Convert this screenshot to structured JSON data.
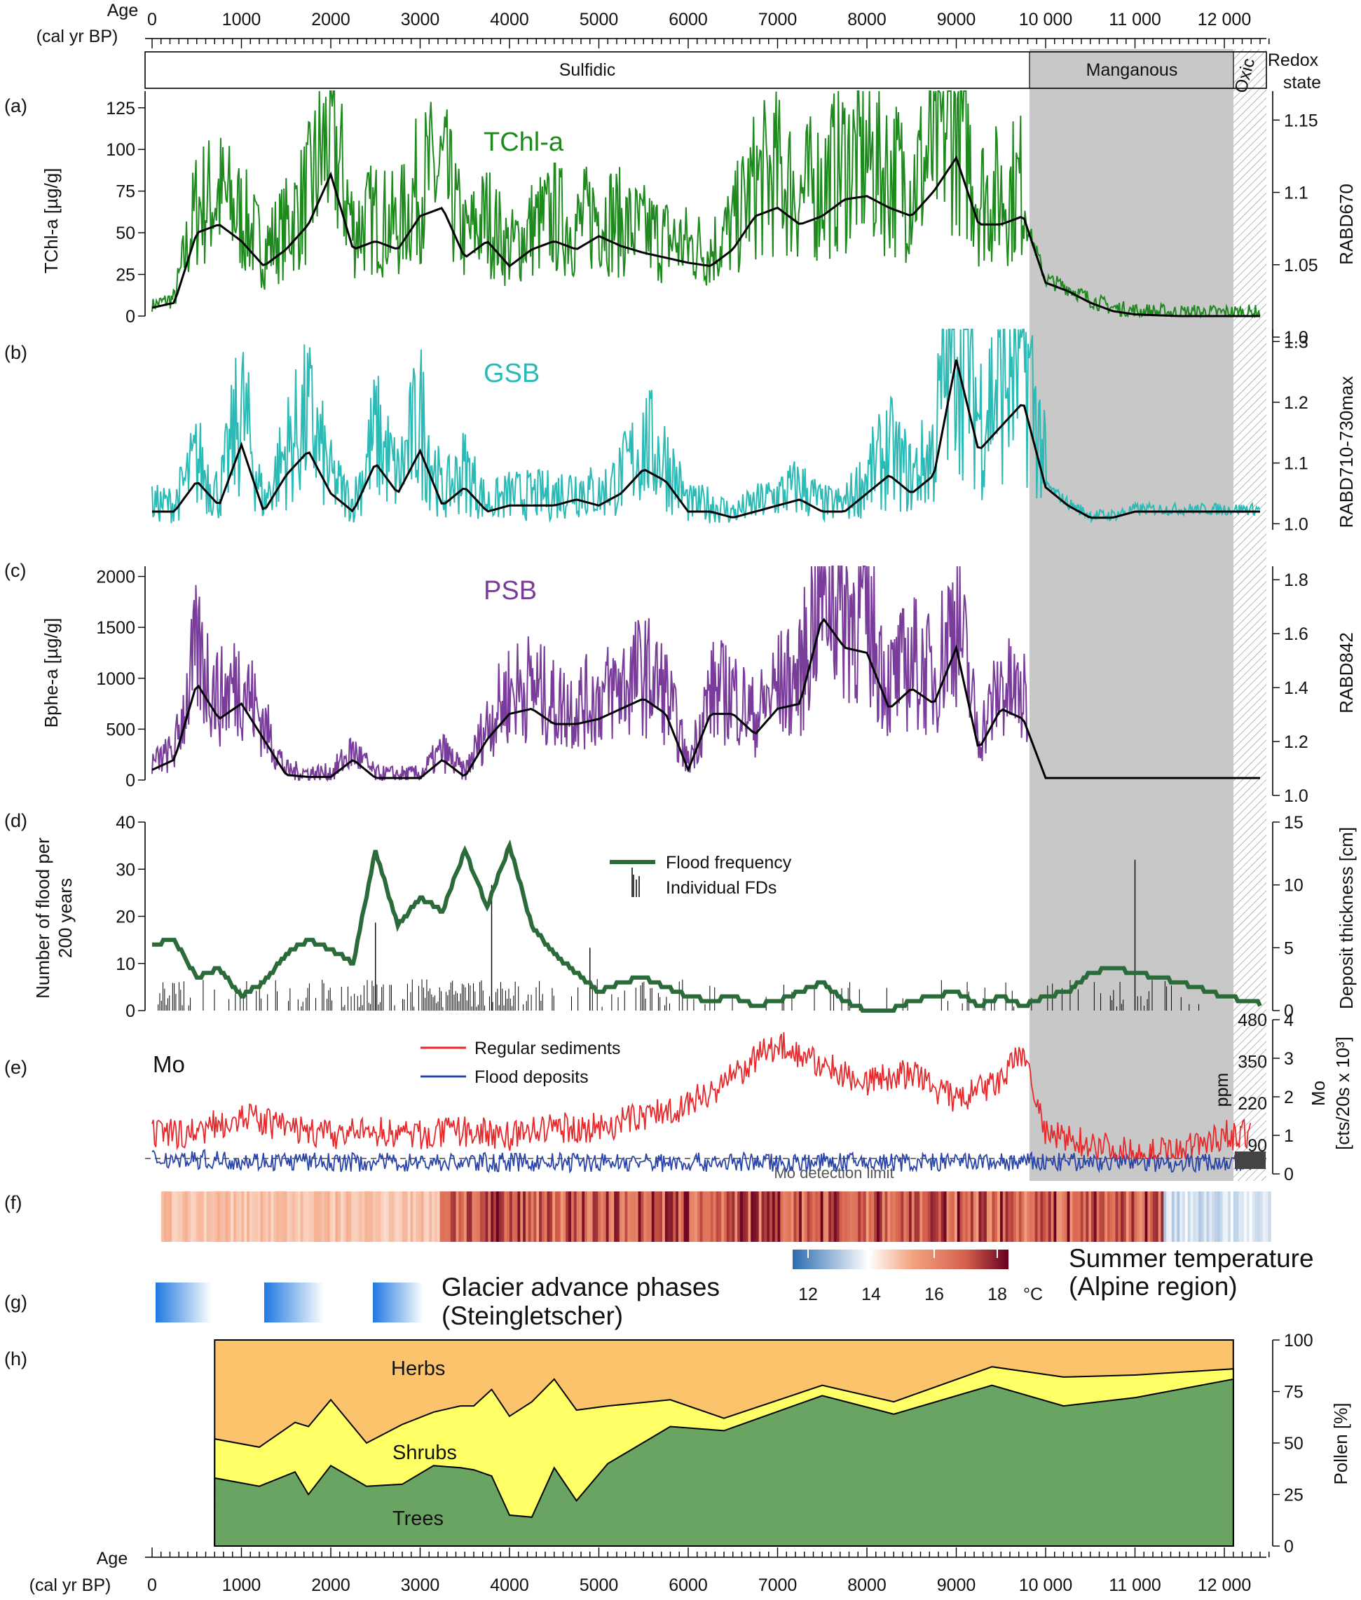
{
  "colors": {
    "tchl": "#1e8a1e",
    "gsb": "#2bbab5",
    "psb": "#7a3c9a",
    "smooth": "#000000",
    "flood": "#2b6b3a",
    "regular": "#e8282b",
    "floodDeposit": "#2a44a8",
    "manganousShade": "#c8c8c8",
    "herbs": "#fbc46c",
    "shrubs": "#ffff66",
    "trees": "#6aa462"
  },
  "axes": {
    "age_title_line1": "Age",
    "age_title_line2": "(cal yr BP)",
    "ticks": [
      "0",
      "1000",
      "2000",
      "3000",
      "4000",
      "5000",
      "6000",
      "7000",
      "8000",
      "9000",
      "10 000",
      "11 000",
      "12 000"
    ],
    "ticks_bottom": [
      "0",
      "1000",
      "2000",
      "3000",
      "4000",
      "5000",
      "6000",
      "7000",
      "8000",
      "9000",
      "10 000",
      "11 000",
      "12 000"
    ]
  },
  "redox": {
    "label_line1": "Redox",
    "label_line2": "state",
    "sulfidic": "Sulfidic",
    "manganous": "Manganous",
    "oxic": "Oxic"
  },
  "panel_labels": {
    "a": "(a)",
    "b": "(b)",
    "c": "(c)",
    "d": "(d)",
    "e": "(e)",
    "f": "(f)",
    "g": "(g)",
    "h": "(h)"
  },
  "panel_a": {
    "title": "TChl-a",
    "ylabel": "TChl-a [µg/g]",
    "y2label": "RABD670",
    "yticks": [
      "0",
      "25",
      "50",
      "75",
      "100",
      "125"
    ],
    "y2ticks": [
      "1.0",
      "1.05",
      "1.1",
      "1.15"
    ]
  },
  "panel_b": {
    "title": "GSB",
    "y2label": "RABD710-730max",
    "y2ticks": [
      "1.0",
      "1.1",
      "1.2",
      "1.3"
    ]
  },
  "panel_c": {
    "title": "PSB",
    "ylabel": "Bphe-a [µg/g]",
    "y2label": "RABD842",
    "yticks": [
      "0",
      "500",
      "1000",
      "1500",
      "2000"
    ],
    "y2ticks": [
      "1.0",
      "1.2",
      "1.4",
      "1.6",
      "1.8"
    ]
  },
  "panel_d": {
    "ylabel_line1": "Number of flood per",
    "ylabel_line2": "200 years",
    "y2label": "Deposit thickness [cm]",
    "yticks": [
      "0",
      "10",
      "20",
      "30",
      "40"
    ],
    "y2ticks": [
      "0",
      "5",
      "10",
      "15"
    ],
    "legend_flood": "Flood frequency",
    "legend_fd": "Individual FDs"
  },
  "panel_e": {
    "title": "Mo",
    "legend_regular": "Regular sediments",
    "legend_flood": "Flood deposits",
    "detection": "Mo detection limit",
    "ppm_label": "ppm",
    "ppm_ticks": [
      "90",
      "220",
      "350",
      "480"
    ],
    "y2label_line1": "Mo",
    "y2label_line2": "[cts/20s x 10³]",
    "y2ticks": [
      "0",
      "1",
      "2",
      "3",
      "4"
    ]
  },
  "panel_f": {
    "legend_title_line1": "Summer temperature",
    "legend_title_line2": "(Alpine region)",
    "colorbar_ticks": [
      "12",
      "14",
      "16",
      "18"
    ],
    "colorbar_unit": "°C"
  },
  "panel_g": {
    "label_line1": "Glacier advance phases",
    "label_line2": "(Steingletscher)"
  },
  "panel_h": {
    "ylabel": "Pollen [%]",
    "yticks": [
      "0",
      "25",
      "50",
      "75",
      "100"
    ],
    "herbs": "Herbs",
    "shrubs": "Shrubs",
    "trees": "Trees"
  },
  "chart_data": [
    {
      "type": "line",
      "title": "TChl-a",
      "xlabel": "Age (cal yr BP)",
      "ylabel": "TChl-a [µg/g]",
      "y2label": "RABD670",
      "xlim": [
        0,
        12500
      ],
      "ylim": [
        0,
        135
      ],
      "y2lim": [
        1.0,
        1.17
      ],
      "series": [
        {
          "x": [
            0,
            250,
            500,
            750,
            1000,
            1250,
            1500,
            1750,
            2000,
            2250,
            2500,
            2750,
            3000,
            3250,
            3500,
            3750,
            4000,
            4250,
            4500,
            4750,
            5000,
            5250,
            5500,
            5750,
            6000,
            6250,
            6500,
            6750,
            7000,
            7250,
            7500,
            7750,
            8000,
            8250,
            8500,
            8750,
            9000,
            9250,
            9500,
            9750,
            10000,
            10250,
            10500,
            10750,
            11000,
            11500,
            12000,
            12500
          ],
          "y": [
            5,
            8,
            50,
            55,
            45,
            30,
            40,
            55,
            85,
            40,
            45,
            40,
            60,
            65,
            35,
            45,
            30,
            40,
            45,
            40,
            48,
            42,
            38,
            35,
            32,
            30,
            40,
            60,
            65,
            55,
            60,
            70,
            72,
            65,
            60,
            75,
            95,
            55,
            55,
            60,
            20,
            15,
            8,
            3,
            1,
            0,
            0,
            0
          ]
        }
      ]
    },
    {
      "type": "line",
      "title": "GSB",
      "xlabel": "Age (cal yr BP)",
      "y2label": "RABD710-730max",
      "xlim": [
        0,
        12500
      ],
      "y2lim": [
        0.99,
        1.32
      ],
      "series": [
        {
          "x": [
            0,
            250,
            500,
            750,
            1000,
            1250,
            1500,
            1750,
            2000,
            2250,
            2500,
            2750,
            3000,
            3250,
            3500,
            3750,
            4000,
            4250,
            4500,
            4750,
            5000,
            5250,
            5500,
            5750,
            6000,
            6250,
            6500,
            6750,
            7000,
            7250,
            7500,
            7750,
            8000,
            8250,
            8500,
            8750,
            9000,
            9250,
            9500,
            9750,
            10000,
            10250,
            10500,
            10750,
            11000,
            11500,
            12000,
            12500
          ],
          "y": [
            1.02,
            1.02,
            1.07,
            1.03,
            1.13,
            1.02,
            1.08,
            1.12,
            1.05,
            1.02,
            1.1,
            1.05,
            1.12,
            1.03,
            1.06,
            1.02,
            1.03,
            1.03,
            1.03,
            1.04,
            1.03,
            1.05,
            1.09,
            1.07,
            1.02,
            1.02,
            1.01,
            1.02,
            1.03,
            1.04,
            1.02,
            1.02,
            1.05,
            1.08,
            1.05,
            1.08,
            1.27,
            1.12,
            1.16,
            1.2,
            1.06,
            1.03,
            1.01,
            1.01,
            1.02,
            1.02,
            1.02,
            1.02
          ]
        }
      ]
    },
    {
      "type": "line",
      "title": "PSB",
      "xlabel": "Age (cal yr BP)",
      "ylabel": "Bphe-a [µg/g]",
      "y2label": "RABD842",
      "xlim": [
        0,
        12500
      ],
      "ylim": [
        0,
        2100
      ],
      "y2lim": [
        1.0,
        1.85
      ],
      "series": [
        {
          "x": [
            0,
            250,
            500,
            750,
            1000,
            1250,
            1500,
            1750,
            2000,
            2250,
            2500,
            2750,
            3000,
            3250,
            3500,
            3750,
            4000,
            4250,
            4500,
            4750,
            5000,
            5250,
            5500,
            5750,
            6000,
            6250,
            6500,
            6750,
            7000,
            7250,
            7500,
            7750,
            8000,
            8250,
            8500,
            8750,
            9000,
            9250,
            9500,
            9750,
            10000,
            10250,
            10500,
            10750,
            11000,
            11500,
            12000,
            12500
          ],
          "y": [
            100,
            200,
            950,
            600,
            750,
            400,
            50,
            30,
            30,
            200,
            20,
            20,
            20,
            200,
            30,
            400,
            650,
            700,
            550,
            550,
            600,
            700,
            800,
            650,
            100,
            650,
            650,
            450,
            700,
            750,
            1600,
            1300,
            1250,
            700,
            900,
            750,
            1300,
            300,
            700,
            600,
            20,
            20,
            20,
            20,
            20,
            20,
            20,
            20
          ]
        }
      ]
    },
    {
      "type": "line",
      "xlabel": "Age (cal yr BP)",
      "ylabel": "Number of flood per 200 years",
      "y2label": "Deposit thickness [cm]",
      "xlim": [
        0,
        12500
      ],
      "ylim": [
        0,
        40
      ],
      "y2lim": [
        0,
        15
      ],
      "series": [
        {
          "name": "Flood frequency",
          "x": [
            0,
            250,
            500,
            750,
            1000,
            1250,
            1500,
            1750,
            2000,
            2250,
            2500,
            2750,
            3000,
            3250,
            3500,
            3750,
            4000,
            4250,
            4500,
            4750,
            5000,
            5250,
            5500,
            5750,
            6000,
            6250,
            6500,
            6750,
            7000,
            7250,
            7500,
            7750,
            8000,
            8250,
            8500,
            8750,
            9000,
            9250,
            9500,
            9750,
            10000,
            10250,
            10500,
            10750,
            11000,
            11500,
            12000,
            12500
          ],
          "y": [
            14,
            15,
            7,
            9,
            3,
            6,
            12,
            15,
            13,
            10,
            34,
            18,
            24,
            21,
            34,
            22,
            35,
            18,
            12,
            8,
            4,
            6,
            7,
            5,
            3,
            2,
            3,
            1,
            2,
            4,
            6,
            2,
            0,
            0,
            2,
            3,
            4,
            1,
            3,
            1,
            3,
            4,
            8,
            9,
            8,
            6,
            3,
            1
          ]
        },
        {
          "name": "Individual FDs",
          "x": [
            3800,
            2500,
            4900,
            11000
          ],
          "y": [
            10,
            7,
            5,
            12
          ]
        }
      ]
    },
    {
      "type": "line",
      "title": "Mo",
      "xlabel": "Age (cal yr BP)",
      "y2label": "Mo [cts/20s x 10³]",
      "xlim": [
        0,
        12500
      ],
      "y2lim": [
        0,
        4
      ],
      "series": [
        {
          "name": "Regular sediments",
          "x": [
            0,
            500,
            1000,
            1500,
            2000,
            2500,
            3000,
            3500,
            4000,
            4500,
            5000,
            5500,
            6000,
            6500,
            7000,
            7500,
            8000,
            8500,
            9000,
            9500,
            9750,
            10000,
            10500,
            11000,
            11500,
            12000
          ],
          "y": [
            1.0,
            1.1,
            1.5,
            1.2,
            1.0,
            1.1,
            1.0,
            1.1,
            1.0,
            1.2,
            1.2,
            1.5,
            1.8,
            2.5,
            3.4,
            2.8,
            2.4,
            2.6,
            1.9,
            2.4,
            3.2,
            1.0,
            0.8,
            0.5,
            0.6,
            1.0
          ]
        },
        {
          "name": "Flood deposits",
          "x": [
            0,
            2000,
            4000,
            5000,
            6000,
            8000,
            10000,
            11000,
            12000
          ],
          "y": [
            0.4,
            0.3,
            0.3,
            0.3,
            0.3,
            0.3,
            0.3,
            0.3,
            0.3
          ]
        }
      ]
    },
    {
      "type": "area",
      "xlabel": "Age (cal yr BP)",
      "ylabel": "Pollen [%]",
      "xlim": [
        0,
        12500
      ],
      "ylim": [
        0,
        100
      ],
      "x": [
        700,
        1200,
        1600,
        1750,
        2000,
        2400,
        2800,
        3150,
        3450,
        3600,
        3800,
        4000,
        4250,
        4500,
        4750,
        5100,
        5800,
        6400,
        7500,
        8300,
        9400,
        10200,
        11000,
        12100
      ],
      "series": [
        {
          "name": "Trees",
          "values": [
            33,
            29,
            36,
            25,
            39,
            29,
            30,
            39,
            38,
            37,
            34,
            15,
            14,
            38,
            22,
            40,
            58,
            56,
            73,
            64,
            78,
            68,
            72,
            81
          ]
        },
        {
          "name": "Shrubs",
          "values": [
            52,
            48,
            60,
            58,
            71,
            50,
            59,
            65,
            68,
            68,
            76,
            63,
            70,
            81,
            66,
            68,
            71,
            62,
            78,
            70,
            87,
            82,
            83,
            86
          ]
        },
        {
          "name": "Herbs",
          "values": [
            100,
            100,
            100,
            100,
            100,
            100,
            100,
            100,
            100,
            100,
            100,
            100,
            100,
            100,
            100,
            100,
            100,
            100,
            100,
            100,
            100,
            100,
            100,
            100
          ]
        }
      ]
    }
  ]
}
